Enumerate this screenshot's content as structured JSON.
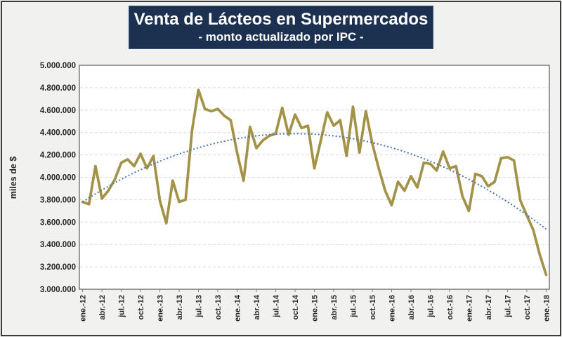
{
  "header": {
    "title": "Venta de Lácteos en Supermercados",
    "subtitle": "- monto actualizado por IPC -"
  },
  "chart_data": {
    "type": "line",
    "title": "Venta de Lácteos en Supermercados",
    "subtitle": "- monto actualizado por IPC -",
    "xlabel": "",
    "ylabel": "miles de $",
    "ylim": [
      3000000,
      5000000
    ],
    "y_tick_step": 200000,
    "y_tick_labels": [
      "5.000.000",
      "4.800.000",
      "4.600.000",
      "4.400.000",
      "4.200.000",
      "4.000.000",
      "3.800.000",
      "3.600.000",
      "3.400.000",
      "3.200.000",
      "3.000.000"
    ],
    "x_tick_interval": 3,
    "x_tick_labels": [
      "ene.-12",
      "abr.-12",
      "jul.-12",
      "oct.-12",
      "ene.-13",
      "abr.-13",
      "jul.-13",
      "oct.-13",
      "ene.-14",
      "abr.-14",
      "jul.-14",
      "oct.-14",
      "ene.-15",
      "abr.-15",
      "jul.-15",
      "oct.-15",
      "ene.-16",
      "abr.-16",
      "jul.-16",
      "oct.-16",
      "ene.-17",
      "abr.-17",
      "jul.-17",
      "oct.-17",
      "ene.-18"
    ],
    "x": [
      "ene.-12",
      "feb.-12",
      "mar.-12",
      "abr.-12",
      "may.-12",
      "jun.-12",
      "jul.-12",
      "ago.-12",
      "sep.-12",
      "oct.-12",
      "nov.-12",
      "dic.-12",
      "ene.-13",
      "feb.-13",
      "mar.-13",
      "abr.-13",
      "may.-13",
      "jun.-13",
      "jul.-13",
      "ago.-13",
      "sep.-13",
      "oct.-13",
      "nov.-13",
      "dic.-13",
      "ene.-14",
      "feb.-14",
      "mar.-14",
      "abr.-14",
      "may.-14",
      "jun.-14",
      "jul.-14",
      "ago.-14",
      "sep.-14",
      "oct.-14",
      "nov.-14",
      "dic.-14",
      "ene.-15",
      "feb.-15",
      "mar.-15",
      "abr.-15",
      "may.-15",
      "jun.-15",
      "jul.-15",
      "ago.-15",
      "sep.-15",
      "oct.-15",
      "nov.-15",
      "dic.-15",
      "ene.-16",
      "feb.-16",
      "mar.-16",
      "abr.-16",
      "may.-16",
      "jun.-16",
      "jul.-16",
      "ago.-16",
      "sep.-16",
      "oct.-16",
      "nov.-16",
      "dic.-16",
      "ene.-17",
      "feb.-17",
      "mar.-17",
      "abr.-17",
      "may.-17",
      "jun.-17",
      "jul.-17",
      "ago.-17",
      "sep.-17",
      "oct.-17",
      "nov.-17",
      "dic.-17",
      "ene.-18"
    ],
    "grid": "horizontal-dashed",
    "legend_position": "none",
    "series": [
      {
        "name": "ventas-lacteos",
        "style": "solid",
        "color": "#a39349",
        "values": [
          3780000,
          3760000,
          4100000,
          3810000,
          3880000,
          3980000,
          4130000,
          4160000,
          4100000,
          4210000,
          4080000,
          4190000,
          3790000,
          3590000,
          3970000,
          3780000,
          3800000,
          4420000,
          4780000,
          4610000,
          4590000,
          4610000,
          4550000,
          4510000,
          4220000,
          3970000,
          4450000,
          4260000,
          4330000,
          4370000,
          4390000,
          4620000,
          4380000,
          4560000,
          4440000,
          4460000,
          4080000,
          4330000,
          4580000,
          4460000,
          4510000,
          4190000,
          4630000,
          4220000,
          4590000,
          4300000,
          4080000,
          3880000,
          3750000,
          3960000,
          3880000,
          4010000,
          3910000,
          4130000,
          4120000,
          4060000,
          4230000,
          4080000,
          4100000,
          3830000,
          3700000,
          4030000,
          4010000,
          3920000,
          3960000,
          4170000,
          4180000,
          4150000,
          3790000,
          3660000,
          3530000,
          3310000,
          3130000
        ]
      },
      {
        "name": "tendencia",
        "style": "dotted",
        "color": "#4a76b2",
        "values": [
          3780000,
          3817000,
          3852000,
          3886000,
          3919000,
          3951000,
          3982000,
          4011000,
          4040000,
          4067000,
          4094000,
          4119000,
          4143000,
          4166000,
          4188000,
          4209000,
          4228000,
          4247000,
          4264000,
          4280000,
          4295000,
          4309000,
          4322000,
          4334000,
          4345000,
          4354000,
          4363000,
          4370000,
          4376000,
          4381000,
          4385000,
          4388000,
          4389000,
          4390000,
          4389000,
          4388000,
          4385000,
          4381000,
          4376000,
          4370000,
          4363000,
          4354000,
          4345000,
          4334000,
          4322000,
          4309000,
          4295000,
          4280000,
          4264000,
          4247000,
          4228000,
          4209000,
          4188000,
          4166000,
          4143000,
          4119000,
          4094000,
          4067000,
          4040000,
          4011000,
          3982000,
          3951000,
          3919000,
          3886000,
          3852000,
          3817000,
          3780000,
          3743000,
          3704000,
          3664000,
          3623000,
          3581000,
          3538000
        ]
      }
    ]
  },
  "colors": {
    "frame": "#3d3d3d",
    "canvas_bg": "#f1f1ef",
    "title_box_bg": "#1c3150",
    "title_text": "#ffffff",
    "plot_bg": "#ffffff",
    "plot_border": "#595959",
    "gridline": "#d9d9d9",
    "axis_text": "#262626",
    "tick": "#7f7f7f"
  }
}
